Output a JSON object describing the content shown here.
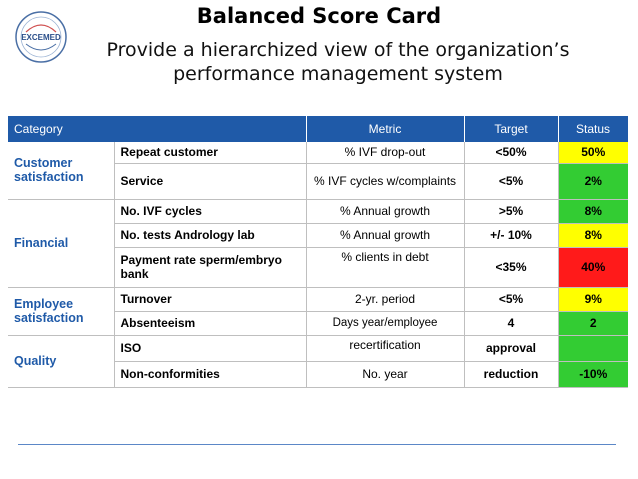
{
  "header": {
    "title": "Balanced Score Card",
    "subtitle": "Provide a hierarchized view of the organization’s performance management system",
    "logo_text": "EXCEMED"
  },
  "table": {
    "columns": {
      "category": "Category",
      "metric": "Metric",
      "target": "Target",
      "status": "Status"
    },
    "groups": [
      {
        "category": "Customer satisfaction",
        "rows": [
          {
            "name": "Repeat customer",
            "metric": "% IVF drop-out",
            "target": "<50%",
            "status": "50%",
            "status_color": "yellow"
          },
          {
            "name": "Service",
            "metric": "% IVF cycles w/complaints",
            "target": "<5%",
            "status": "2%",
            "status_color": "green"
          }
        ]
      },
      {
        "category": "Financial",
        "rows": [
          {
            "name": "No. IVF cycles",
            "metric": "% Annual growth",
            "target": ">5%",
            "status": "8%",
            "status_color": "green"
          },
          {
            "name": "No. tests Andrology lab",
            "metric": "% Annual growth",
            "target": "+/- 10%",
            "status": "8%",
            "status_color": "yellow"
          },
          {
            "name": "Payment rate sperm/embryo bank",
            "metric": "% clients in debt",
            "target": "<35%",
            "status": "40%",
            "status_color": "red"
          }
        ]
      },
      {
        "category": "Employee satisfaction",
        "rows": [
          {
            "name": "Turnover",
            "metric": "2-yr. period",
            "target": "<5%",
            "status": "9%",
            "status_color": "yellow"
          },
          {
            "name": "Absenteeism",
            "metric": "Days year/employee",
            "target": "4",
            "status": "2",
            "status_color": "green"
          }
        ]
      },
      {
        "category": "Quality",
        "rows": [
          {
            "name": "ISO",
            "metric": "recertification",
            "target": "approval",
            "status": "",
            "status_color": "green"
          },
          {
            "name": "Non-conformities",
            "metric": "No. year",
            "target": "reduction",
            "status": "-10%",
            "status_color": "green"
          }
        ]
      }
    ]
  },
  "colors": {
    "header_bg": "#1f5aa8",
    "category_text": "#1f5aa8",
    "status_yellow": "#ffff00",
    "status_green": "#33cc33",
    "status_red": "#ff1a1a"
  }
}
